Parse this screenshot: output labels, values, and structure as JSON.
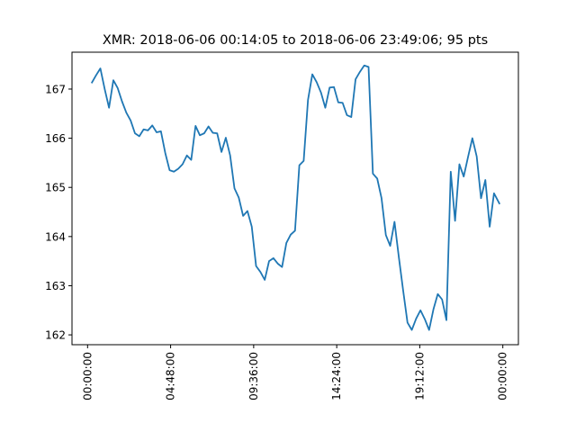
{
  "chart_data": {
    "type": "line",
    "title": "XMR: 2018-06-06 00:14:05 to 2018-06-06 23:49:06; 95 pts",
    "xlabel": "",
    "ylabel": "",
    "x_unit": "hours since 2018-06-06 00:00:00",
    "xlim": [
      -0.9,
      24.9
    ],
    "ylim": [
      161.8,
      167.75
    ],
    "x_ticks": [
      0,
      4.8,
      9.6,
      14.4,
      19.2,
      24.0
    ],
    "x_tick_labels": [
      "00:00:00",
      "04:48:00",
      "09:36:00",
      "14:24:00",
      "19:12:00",
      "00:00:00"
    ],
    "y_ticks": [
      162,
      163,
      164,
      165,
      166,
      167
    ],
    "y_tick_labels": [
      "162",
      "163",
      "164",
      "165",
      "166",
      "167"
    ],
    "grid": false,
    "color": "#1f77b4",
    "series": [
      {
        "x": [
          0.23,
          0.49,
          0.74,
          0.99,
          1.24,
          1.49,
          1.74,
          1.99,
          2.24,
          2.49,
          2.74,
          2.99,
          3.24,
          3.49,
          3.74,
          3.99,
          4.24,
          4.49,
          4.74,
          4.99,
          5.24,
          5.49,
          5.74,
          5.99,
          6.24,
          6.49,
          6.74,
          6.99,
          7.24,
          7.49,
          7.74,
          7.99,
          8.24,
          8.49,
          8.74,
          8.99,
          9.24,
          9.49,
          9.74,
          9.99,
          10.24,
          10.49,
          10.74,
          10.99,
          11.24,
          11.49,
          11.74,
          11.99,
          12.24,
          12.49,
          12.74,
          12.99,
          13.24,
          13.49,
          13.74,
          13.99,
          14.24,
          14.49,
          14.74,
          14.99,
          15.24,
          15.49,
          15.74,
          15.99,
          16.24,
          16.49,
          16.74,
          16.99,
          17.24,
          17.49,
          17.74,
          17.99,
          18.24,
          18.49,
          18.74,
          18.99,
          19.24,
          19.49,
          19.74,
          19.99,
          20.24,
          20.49,
          20.74,
          20.99,
          21.24,
          21.49,
          21.74,
          21.99,
          22.24,
          22.49,
          22.74,
          22.99,
          23.24,
          23.49,
          23.82
        ],
        "y": [
          167.12,
          167.28,
          167.42,
          167.0,
          166.62,
          167.18,
          167.02,
          166.75,
          166.52,
          166.36,
          166.1,
          166.04,
          166.18,
          166.16,
          166.26,
          166.12,
          166.14,
          165.7,
          165.35,
          165.32,
          165.38,
          165.47,
          165.65,
          165.56,
          166.25,
          166.06,
          166.1,
          166.24,
          166.11,
          166.1,
          165.72,
          166.01,
          165.65,
          164.98,
          164.79,
          164.42,
          164.52,
          164.2,
          163.4,
          163.28,
          163.12,
          163.5,
          163.56,
          163.45,
          163.38,
          163.87,
          164.04,
          164.12,
          165.45,
          165.54,
          166.78,
          167.3,
          167.14,
          166.93,
          166.62,
          167.03,
          167.04,
          166.73,
          166.72,
          166.47,
          166.43,
          167.2,
          167.35,
          167.48,
          167.45,
          165.28,
          165.18,
          164.78,
          164.03,
          163.81,
          164.3,
          163.58,
          162.9,
          162.25,
          162.1,
          162.33,
          162.5,
          162.32,
          162.1,
          162.52,
          162.83,
          162.72,
          162.3,
          165.32,
          164.32,
          165.47,
          165.22,
          165.62,
          166.0,
          165.63,
          164.78,
          165.15,
          164.2,
          164.88,
          164.66
        ]
      }
    ]
  }
}
